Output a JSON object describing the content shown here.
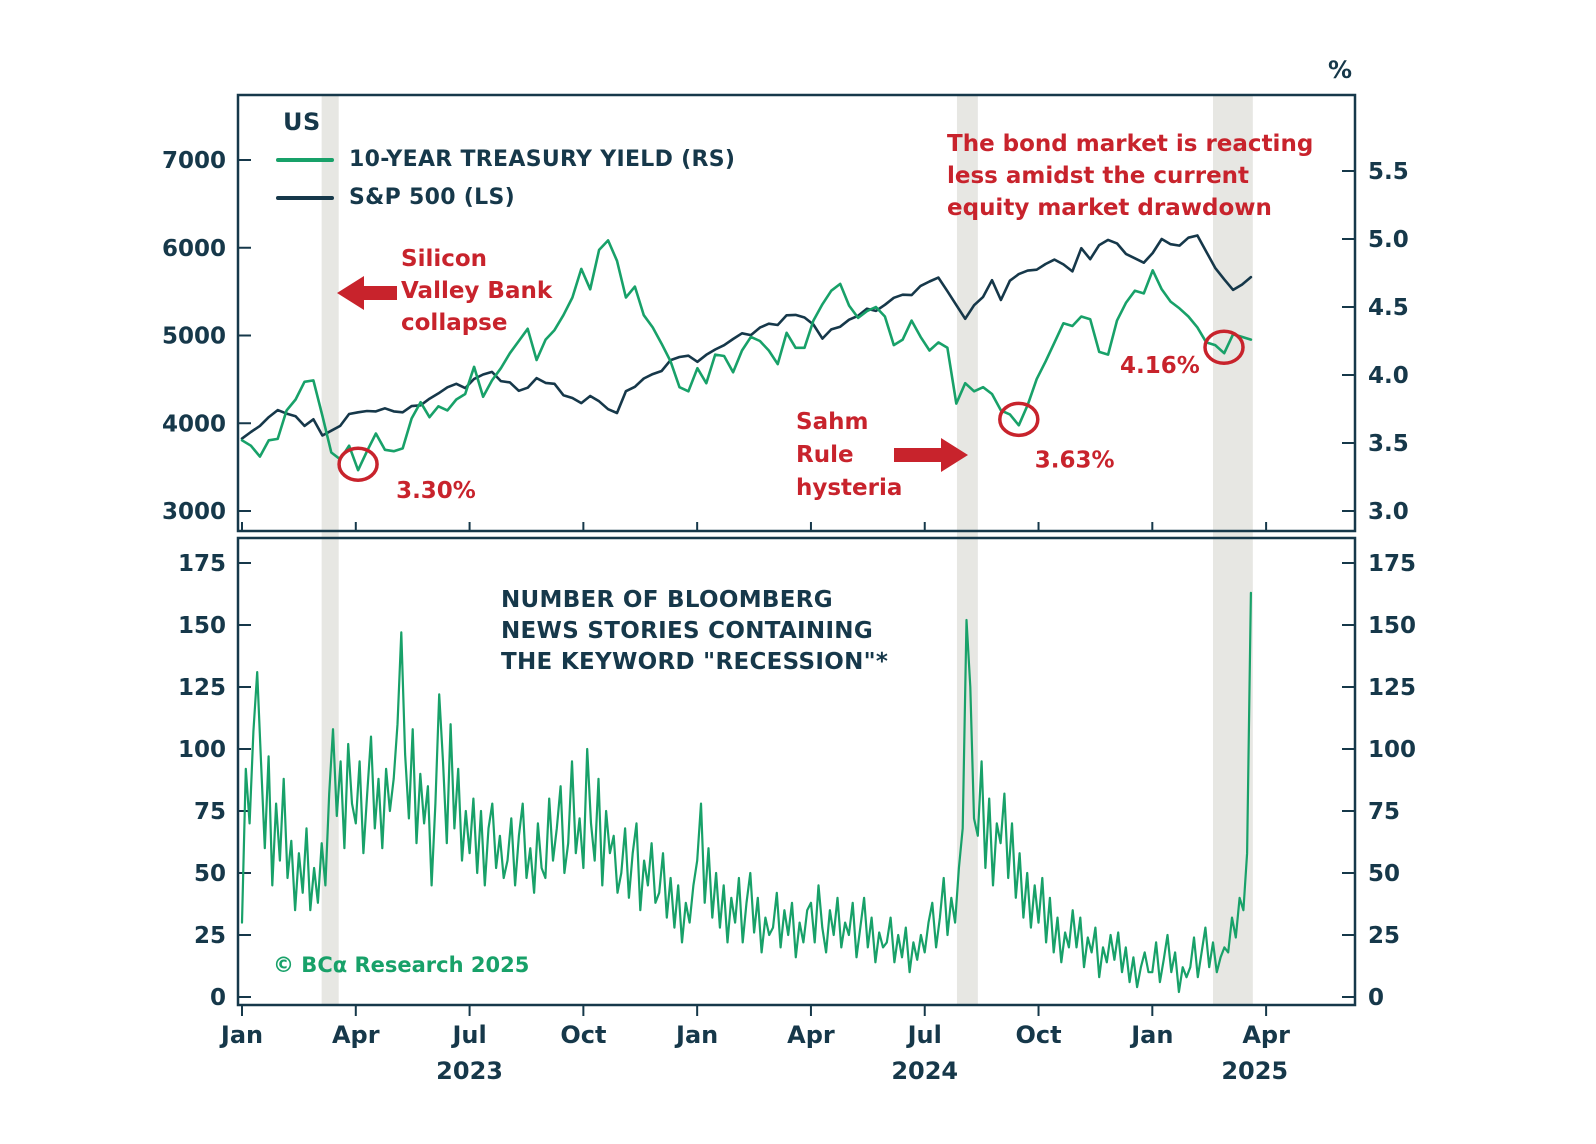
{
  "meta": {
    "region_label": "US",
    "copyright": "© BCα Research 2025"
  },
  "palette": {
    "green": "#18a169",
    "navy": "#16384a",
    "red": "#c8232c",
    "band": "#e7e7e3"
  },
  "top_panel": {
    "legend": [
      {
        "label": "10-YEAR TREASURY YIELD (RS)",
        "color": "#18a169"
      },
      {
        "label": "S&P 500 (LS)",
        "color": "#16384a"
      }
    ],
    "left_axis": {
      "ticks": [
        7000,
        6000,
        5000,
        4000,
        3000
      ],
      "min": 3000,
      "max": 7000
    },
    "right_axis": {
      "ticks": [
        "5.5",
        "5.0",
        "4.5",
        "4.0",
        "3.5",
        "3.0"
      ],
      "min": 3.0,
      "max": 5.5,
      "unit": "%"
    },
    "annotations": {
      "svb": "Silicon\nValley Bank\ncollapse",
      "bond_market": "The bond market is reacting\nless amidst the current\nequity market drawdown",
      "sahm": "Sahm\nRule\nhysteria"
    },
    "callouts": [
      {
        "label": "3.30%",
        "month": 3.06,
        "value": 3.3
      },
      {
        "label": "3.63%",
        "month": 20.48,
        "value": 3.63
      },
      {
        "label": "4.16%",
        "month": 25.89,
        "value": 4.16
      }
    ]
  },
  "bottom_panel": {
    "title": "NUMBER OF BLOOMBERG\nNEWS STORIES CONTAINING\nTHE KEYWORD \"RECESSION\"*",
    "axis": {
      "ticks": [
        175,
        150,
        125,
        100,
        75,
        50,
        25,
        0
      ],
      "min": 0,
      "max": 175
    }
  },
  "x_axis": {
    "month_ticks": [
      {
        "label": "Jan",
        "month": 0
      },
      {
        "label": "Apr",
        "month": 3
      },
      {
        "label": "Jul",
        "month": 6
      },
      {
        "label": "Oct",
        "month": 9
      },
      {
        "label": "Jan",
        "month": 12
      },
      {
        "label": "Apr",
        "month": 15
      },
      {
        "label": "Jul",
        "month": 18
      },
      {
        "label": "Oct",
        "month": 21
      },
      {
        "label": "Jan",
        "month": 24
      },
      {
        "label": "Apr",
        "month": 27
      }
    ],
    "year_ticks": [
      {
        "label": "2023",
        "month": 6
      },
      {
        "label": "2024",
        "month": 18
      },
      {
        "label": "2025",
        "month": 26.7
      }
    ]
  },
  "highlight_bands": [
    {
      "name": "svb-collapse",
      "start_month": 2.1,
      "end_month": 2.55
    },
    {
      "name": "sahm-rule",
      "start_month": 18.85,
      "end_month": 19.4
    },
    {
      "name": "equity-drawdown",
      "start_month": 25.6,
      "end_month": 26.65
    }
  ],
  "chart_data": [
    {
      "type": "line",
      "title": "US: S&P 500 vs 10-Year Treasury Yield",
      "x_unit": "months since Jan 2023",
      "x_range": [
        0,
        26.6
      ],
      "series": [
        {
          "name": "S&P 500 (LS)",
          "axis": "left",
          "ylim": [
            3000,
            7000
          ],
          "color": "#16384a",
          "values": [
            3825,
            3900,
            3970,
            4070,
            4150,
            4110,
            4080,
            3970,
            4045,
            3860,
            3915,
            3970,
            4105,
            4125,
            4140,
            4135,
            4170,
            4135,
            4125,
            4195,
            4205,
            4280,
            4340,
            4410,
            4450,
            4400,
            4505,
            4555,
            4585,
            4480,
            4465,
            4370,
            4405,
            4515,
            4460,
            4450,
            4320,
            4288,
            4230,
            4310,
            4250,
            4160,
            4117,
            4365,
            4415,
            4510,
            4560,
            4595,
            4720,
            4755,
            4770,
            4700,
            4780,
            4840,
            4890,
            4960,
            5025,
            5005,
            5090,
            5135,
            5120,
            5230,
            5235,
            5205,
            5125,
            4965,
            5070,
            5100,
            5180,
            5225,
            5305,
            5280,
            5350,
            5430,
            5465,
            5460,
            5565,
            5615,
            5660,
            5505,
            5346,
            5190,
            5345,
            5440,
            5630,
            5405,
            5625,
            5700,
            5740,
            5750,
            5815,
            5865,
            5810,
            5730,
            5995,
            5870,
            6030,
            6090,
            6050,
            5930,
            5880,
            5830,
            5940,
            6100,
            6040,
            6025,
            6115,
            6140,
            5955,
            5770,
            5640,
            5520,
            5580,
            5665
          ]
        },
        {
          "name": "10-YEAR TREASURY YIELD (RS)",
          "axis": "right",
          "ylim": [
            3.0,
            5.5
          ],
          "color": "#18a169",
          "values": [
            3.52,
            3.48,
            3.4,
            3.52,
            3.53,
            3.74,
            3.82,
            3.95,
            3.96,
            3.7,
            3.43,
            3.38,
            3.48,
            3.3,
            3.44,
            3.57,
            3.45,
            3.44,
            3.46,
            3.68,
            3.8,
            3.69,
            3.77,
            3.74,
            3.82,
            3.86,
            4.06,
            3.84,
            3.96,
            4.05,
            4.16,
            4.25,
            4.34,
            4.11,
            4.26,
            4.33,
            4.44,
            4.57,
            4.78,
            4.63,
            4.92,
            4.99,
            4.84,
            4.57,
            4.65,
            4.44,
            4.35,
            4.23,
            4.1,
            3.91,
            3.88,
            4.05,
            3.94,
            4.15,
            4.14,
            4.02,
            4.18,
            4.28,
            4.25,
            4.18,
            4.08,
            4.31,
            4.2,
            4.2,
            4.4,
            4.52,
            4.62,
            4.67,
            4.51,
            4.42,
            4.47,
            4.5,
            4.43,
            4.22,
            4.26,
            4.4,
            4.28,
            4.18,
            4.24,
            4.2,
            3.79,
            3.94,
            3.88,
            3.91,
            3.86,
            3.74,
            3.71,
            3.63,
            3.78,
            3.97,
            4.1,
            4.24,
            4.38,
            4.36,
            4.43,
            4.41,
            4.17,
            4.15,
            4.4,
            4.53,
            4.62,
            4.6,
            4.77,
            4.63,
            4.54,
            4.49,
            4.43,
            4.35,
            4.24,
            4.22,
            4.16,
            4.3,
            4.28,
            4.26
          ]
        }
      ]
    },
    {
      "type": "line",
      "title": "Number of Bloomberg news stories containing the keyword \"recession\"",
      "x_unit": "months since Jan 2023",
      "x_range": [
        0,
        26.6
      ],
      "ylim": [
        0,
        175
      ],
      "color": "#18a169",
      "values": [
        30,
        92,
        70,
        107,
        131,
        95,
        60,
        97,
        45,
        78,
        55,
        88,
        48,
        63,
        35,
        58,
        42,
        68,
        35,
        52,
        38,
        62,
        45,
        82,
        108,
        73,
        95,
        60,
        102,
        78,
        70,
        95,
        58,
        82,
        105,
        68,
        88,
        60,
        92,
        75,
        88,
        110,
        147,
        98,
        72,
        108,
        62,
        90,
        70,
        85,
        45,
        78,
        122,
        95,
        62,
        110,
        68,
        92,
        55,
        75,
        58,
        80,
        50,
        75,
        45,
        68,
        78,
        52,
        65,
        48,
        55,
        72,
        45,
        65,
        78,
        48,
        60,
        42,
        70,
        52,
        48,
        80,
        55,
        68,
        85,
        50,
        62,
        95,
        58,
        72,
        52,
        100,
        70,
        55,
        88,
        45,
        75,
        58,
        65,
        42,
        50,
        68,
        40,
        58,
        70,
        35,
        55,
        45,
        62,
        38,
        42,
        58,
        32,
        48,
        28,
        45,
        22,
        38,
        30,
        45,
        55,
        78,
        38,
        60,
        32,
        50,
        28,
        45,
        22,
        40,
        30,
        48,
        22,
        38,
        50,
        26,
        40,
        18,
        32,
        25,
        28,
        42,
        20,
        35,
        25,
        38,
        16,
        30,
        22,
        35,
        38,
        22,
        45,
        28,
        18,
        35,
        25,
        40,
        20,
        30,
        25,
        38,
        16,
        28,
        40,
        20,
        32,
        14,
        26,
        20,
        22,
        32,
        14,
        25,
        16,
        28,
        10,
        22,
        15,
        25,
        18,
        30,
        38,
        20,
        32,
        48,
        25,
        40,
        30,
        52,
        68,
        152,
        125,
        72,
        65,
        95,
        52,
        80,
        45,
        70,
        62,
        82,
        48,
        70,
        40,
        58,
        32,
        50,
        28,
        45,
        30,
        48,
        22,
        40,
        18,
        32,
        14,
        26,
        20,
        35,
        20,
        32,
        12,
        24,
        18,
        28,
        8,
        20,
        14,
        25,
        15,
        26,
        10,
        20,
        6,
        16,
        4,
        12,
        18,
        10,
        10,
        22,
        6,
        15,
        25,
        10,
        18,
        2,
        12,
        8,
        12,
        24,
        8,
        18,
        28,
        12,
        22,
        10,
        16,
        20,
        18,
        32,
        24,
        40,
        35,
        58,
        163
      ]
    }
  ]
}
